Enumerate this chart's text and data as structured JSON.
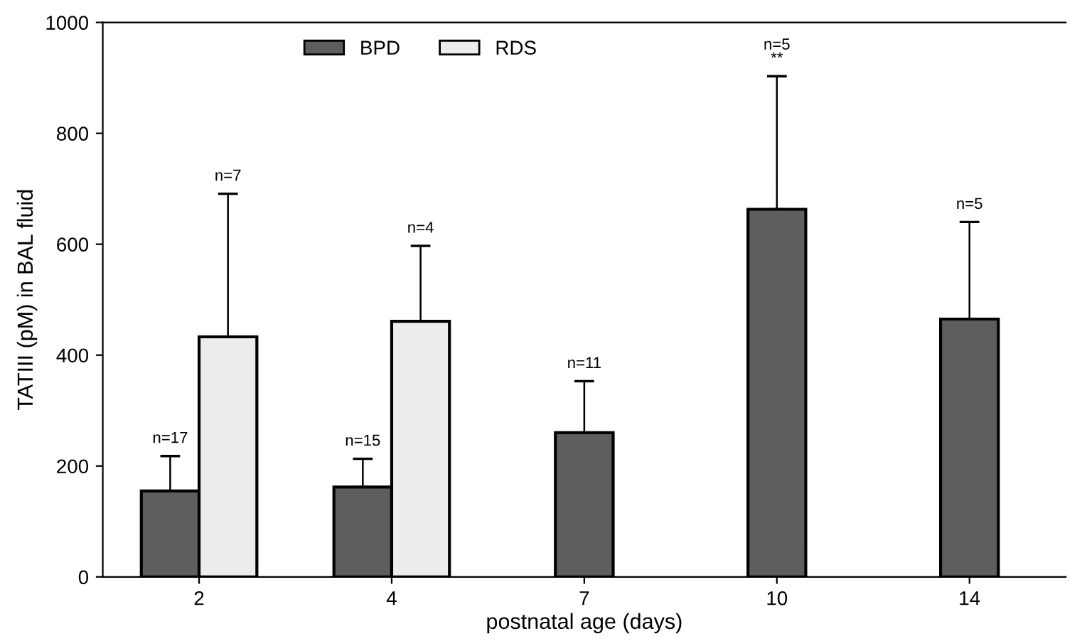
{
  "chart_data": {
    "type": "bar",
    "xlabel": "postnatal age (days)",
    "ylabel": "TATIII (pM) in BAL fluid",
    "categories": [
      "2",
      "4",
      "7",
      "10",
      "14"
    ],
    "series": [
      {
        "name": "BPD",
        "color": "#5e5e5e",
        "values": [
          155,
          162,
          260,
          663,
          465
        ],
        "errors": [
          [
            155,
            218
          ],
          [
            162,
            213
          ],
          [
            260,
            353
          ],
          [
            663,
            903
          ],
          [
            465,
            640
          ]
        ]
      },
      {
        "name": "RDS",
        "color": "#ececec",
        "values": [
          433,
          461,
          null,
          null,
          null
        ],
        "errors": [
          [
            433,
            691
          ],
          [
            461,
            597
          ],
          null,
          null,
          null
        ]
      }
    ],
    "ylim": [
      0,
      1000
    ],
    "yticks": [
      0,
      200,
      400,
      600,
      800,
      1000
    ],
    "grid": false,
    "legend": "top",
    "annotations": [
      "n=17",
      "n=7",
      "n=15",
      "n=4",
      "n=11",
      "n=5\n**",
      "n=5"
    ]
  }
}
